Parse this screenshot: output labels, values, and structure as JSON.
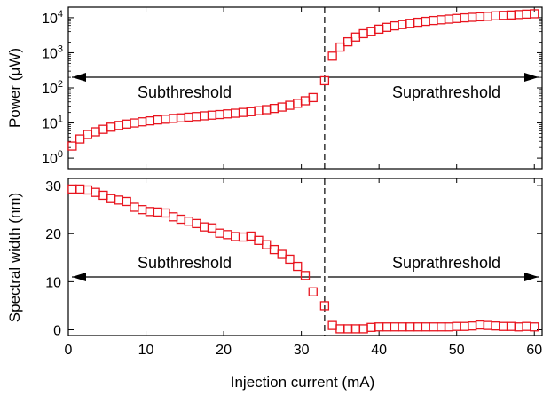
{
  "chart_data": [
    {
      "type": "scatter",
      "panel": "top",
      "title": "",
      "ylabel": "Power (μW)",
      "yscale": "log",
      "ylim": [
        0.5,
        20000
      ],
      "xlim": [
        0,
        61
      ],
      "yticks": [
        {
          "value": 1,
          "label": "10",
          "exp": "0"
        },
        {
          "value": 10,
          "label": "10",
          "exp": "1"
        },
        {
          "value": 100,
          "label": "10",
          "exp": "2"
        },
        {
          "value": 1000,
          "label": "10",
          "exp": "3"
        },
        {
          "value": 10000,
          "label": "10",
          "exp": "4"
        }
      ],
      "threshold_x": 33,
      "annotations": {
        "left": "Subthreshold",
        "right": "Suprathreshold"
      },
      "marker": {
        "shape": "square",
        "color": "#e8141e",
        "filled": false
      },
      "series": [
        {
          "x": [
            0.5,
            1.5,
            2.5,
            3.5,
            4.5,
            5.5,
            6.5,
            7.5,
            8.5,
            9.5,
            10.5,
            11.5,
            12.5,
            13.5,
            14.5,
            15.5,
            16.5,
            17.5,
            18.5,
            19.5,
            20.5,
            21.5,
            22.5,
            23.5,
            24.5,
            25.5,
            26.5,
            27.5,
            28.5,
            29.5,
            30.5,
            31.5,
            33,
            34,
            35,
            36,
            37,
            38,
            39,
            40,
            41,
            42,
            43,
            44,
            45,
            46,
            47,
            48,
            49,
            50,
            51,
            52,
            53,
            54,
            55,
            56,
            57,
            58,
            59,
            60
          ],
          "y": [
            2.2,
            3.5,
            4.7,
            5.6,
            6.6,
            7.6,
            8.5,
            9.3,
            10,
            10.8,
            11.5,
            12.2,
            12.8,
            13.5,
            14,
            14.7,
            15.3,
            16,
            16.7,
            17.4,
            18.2,
            19,
            20,
            21,
            22.4,
            24,
            26,
            28.5,
            32,
            36.5,
            43,
            53,
            160,
            800,
            1450,
            2050,
            2800,
            3500,
            4100,
            4700,
            5300,
            5850,
            6350,
            6900,
            7400,
            7850,
            8300,
            8700,
            9100,
            9500,
            9900,
            10250,
            10600,
            10950,
            11300,
            11650,
            11950,
            12300,
            12650,
            12950
          ]
        }
      ]
    },
    {
      "type": "scatter",
      "panel": "bottom",
      "title": "",
      "xlabel": "Injection current (mA)",
      "ylabel": "Spectral width (nm)",
      "xlim": [
        0,
        61
      ],
      "ylim": [
        -1.2,
        31.5
      ],
      "xticks": [
        0,
        10,
        20,
        30,
        40,
        50,
        60
      ],
      "yticks": [
        0,
        10,
        20,
        30
      ],
      "threshold_x": 33,
      "annotations": {
        "left": "Subthreshold",
        "right": "Suprathreshold"
      },
      "marker": {
        "shape": "square",
        "color": "#e8141e",
        "filled": false
      },
      "series": [
        {
          "x": [
            0.5,
            1.5,
            2.5,
            3.5,
            4.5,
            5.5,
            6.5,
            7.5,
            8.5,
            9.5,
            10.5,
            11.5,
            12.5,
            13.5,
            14.5,
            15.5,
            16.5,
            17.5,
            18.5,
            19.5,
            20.5,
            21.5,
            22.5,
            23.5,
            24.5,
            25.5,
            26.5,
            27.5,
            28.5,
            29.5,
            30.5,
            31.5,
            33,
            34,
            35,
            36,
            37,
            38,
            39,
            40,
            41,
            42,
            43,
            44,
            45,
            46,
            47,
            48,
            49,
            50,
            51,
            52,
            53,
            54,
            55,
            56,
            57,
            58,
            59,
            60
          ],
          "y": [
            29.3,
            29.3,
            29.1,
            28.6,
            28,
            27.3,
            27,
            26.7,
            25.5,
            25,
            24.6,
            24.5,
            24.3,
            23.5,
            23,
            22.6,
            22.1,
            21.4,
            21.2,
            20.1,
            19.8,
            19.4,
            19.3,
            19.5,
            18.6,
            17.7,
            16.7,
            15.7,
            14.7,
            13.2,
            11.3,
            7.9,
            5,
            0.9,
            0.2,
            0.2,
            0.2,
            0.2,
            0.5,
            0.6,
            0.6,
            0.6,
            0.6,
            0.6,
            0.6,
            0.6,
            0.6,
            0.6,
            0.6,
            0.7,
            0.7,
            0.8,
            1,
            0.9,
            0.8,
            0.7,
            0.7,
            0.6,
            0.7,
            0.6
          ]
        }
      ]
    }
  ]
}
